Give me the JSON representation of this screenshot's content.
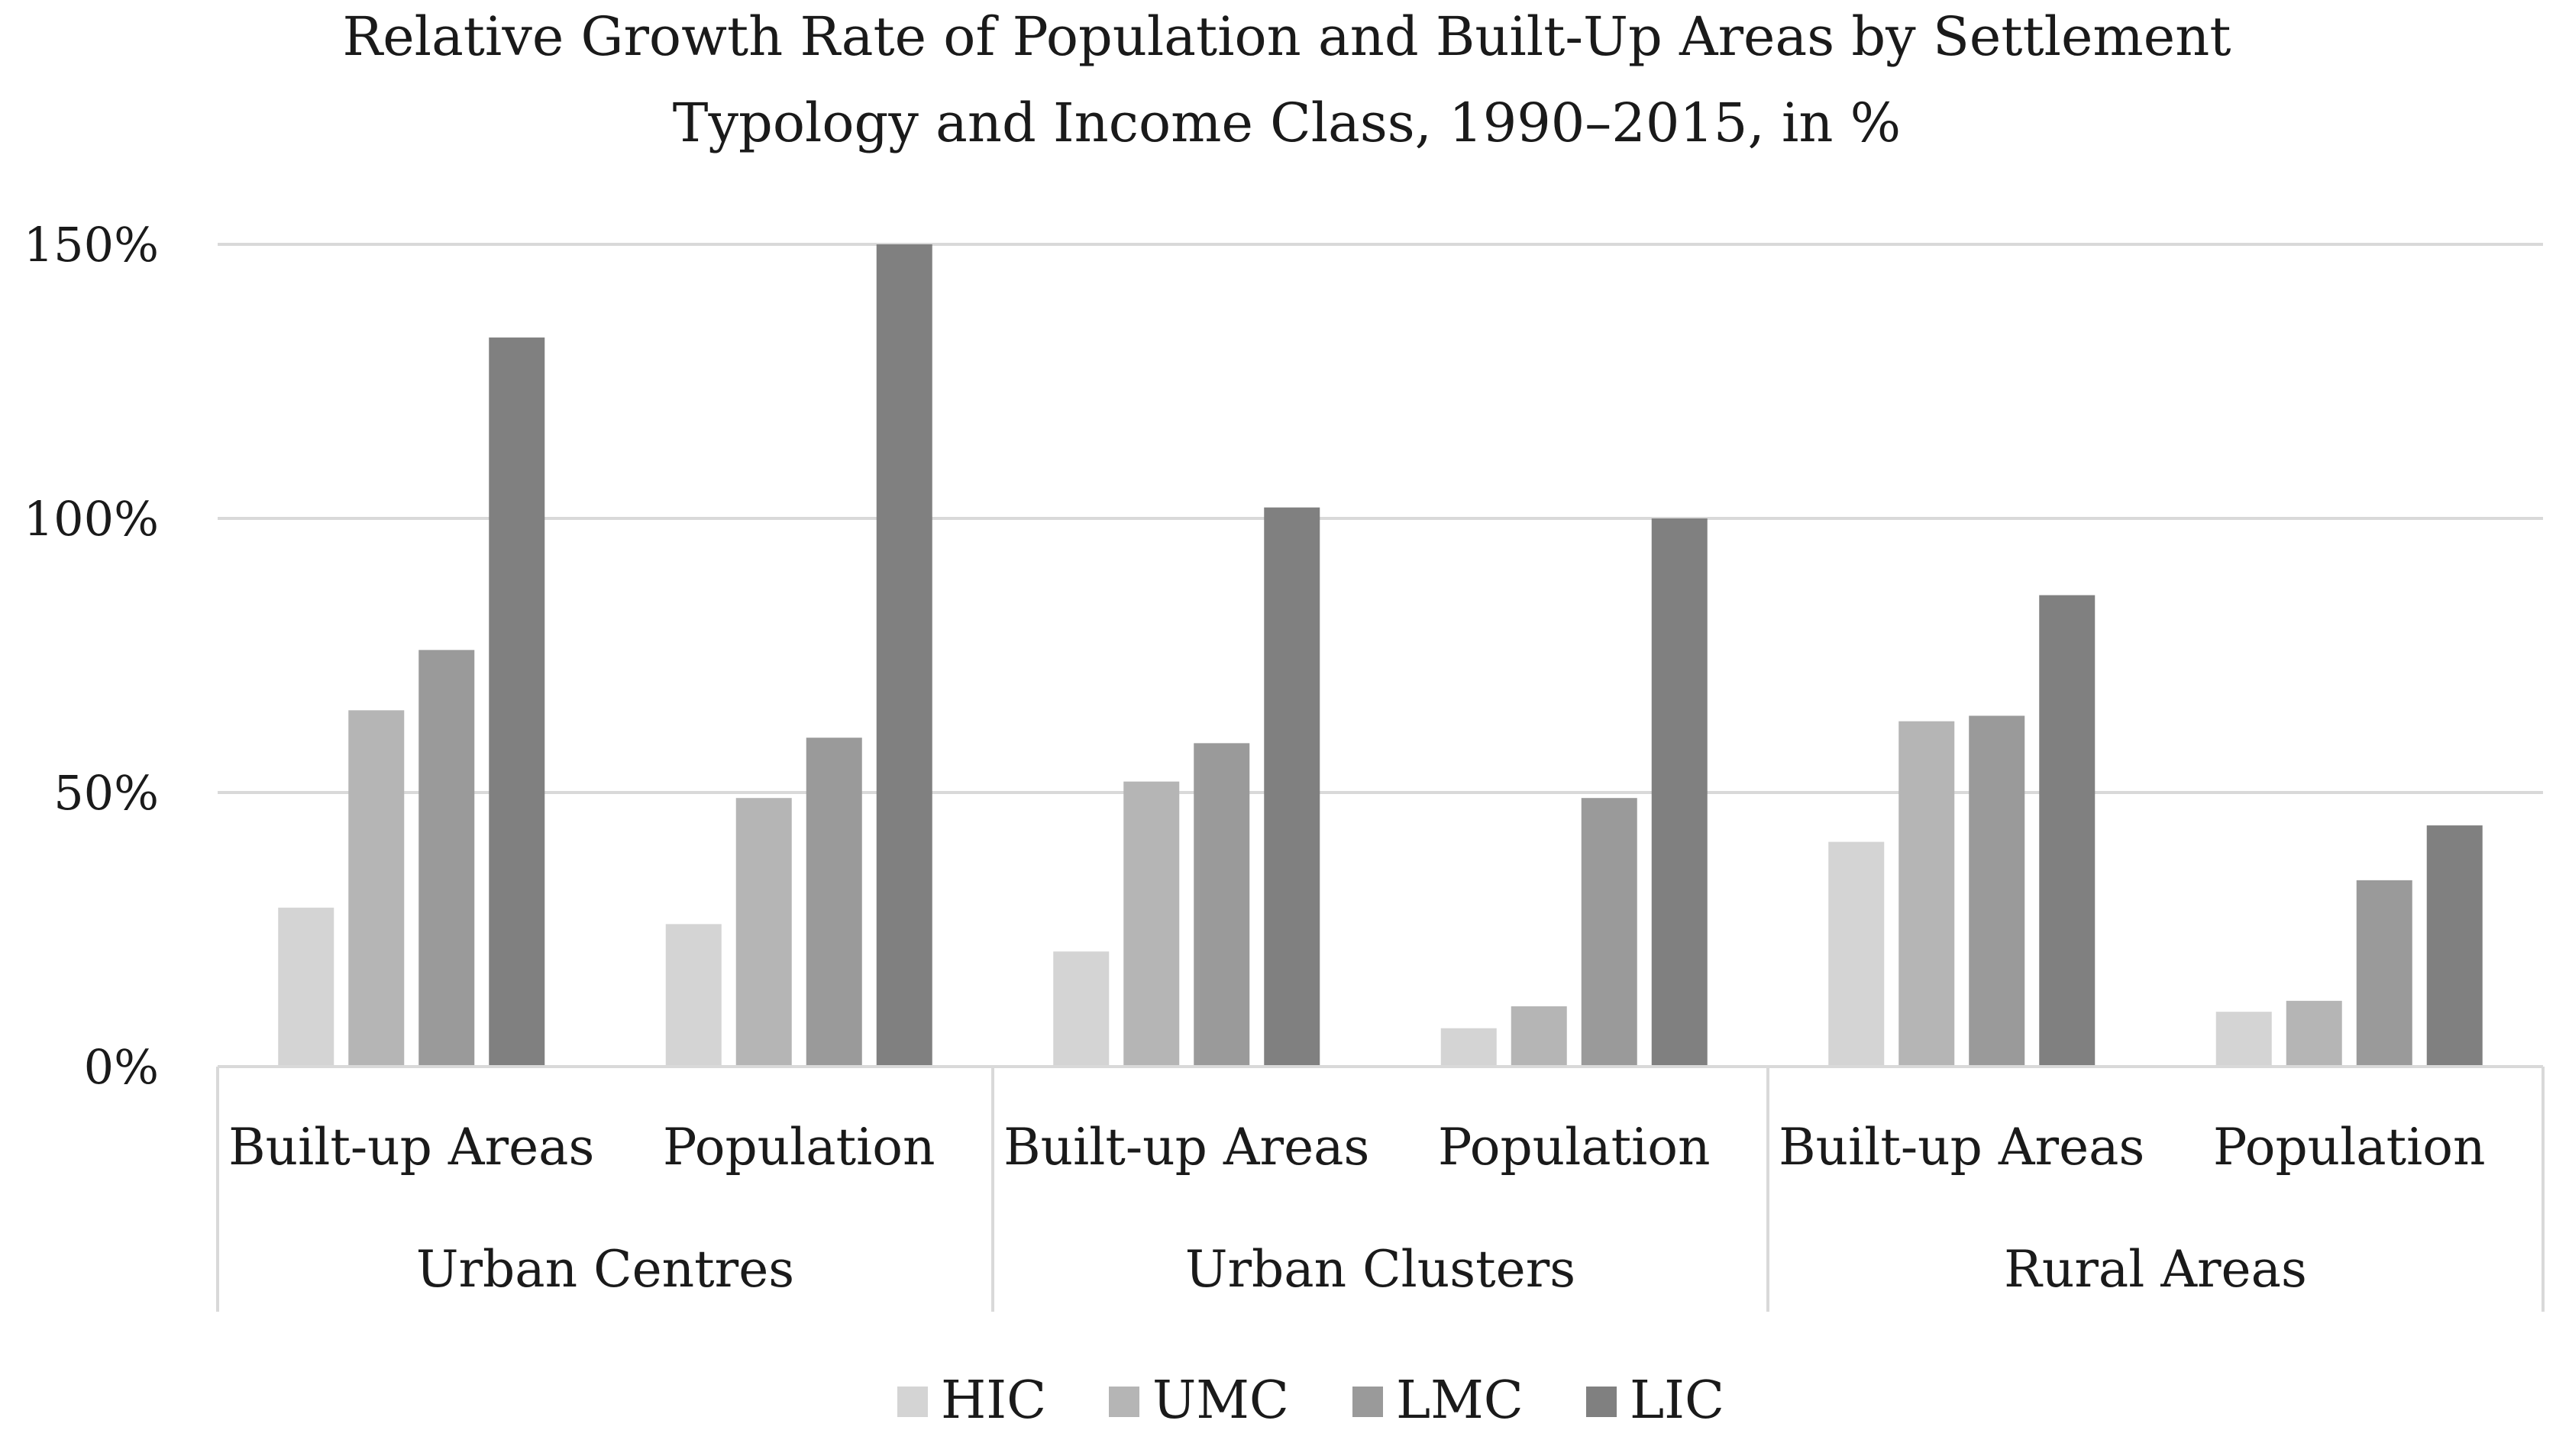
{
  "chart_data": {
    "type": "bar",
    "title_lines": [
      "Relative Growth Rate of Population and Built-Up Areas by Settlement",
      "Typology and Income Class, 1990–2015, in %"
    ],
    "categories": [
      {
        "label": "Built-up Areas",
        "group": "Urban Centres"
      },
      {
        "label": "Population",
        "group": "Urban Centres"
      },
      {
        "label": "Built-up Areas",
        "group": "Urban Clusters"
      },
      {
        "label": "Population",
        "group": "Urban Clusters"
      },
      {
        "label": "Built-up Areas",
        "group": "Rural Areas"
      },
      {
        "label": "Population",
        "group": "Rural Areas"
      }
    ],
    "groups": [
      "Urban Centres",
      "Urban Clusters",
      "Rural Areas"
    ],
    "series": [
      {
        "name": "HIC",
        "color": "#d4d4d4",
        "values": [
          29,
          26,
          21,
          7,
          41,
          10
        ]
      },
      {
        "name": "UMC",
        "color": "#b5b5b5",
        "values": [
          65,
          49,
          52,
          11,
          63,
          12
        ]
      },
      {
        "name": "LMC",
        "color": "#9a9a9a",
        "values": [
          76,
          60,
          59,
          49,
          64,
          34
        ]
      },
      {
        "name": "LIC",
        "color": "#808080",
        "values": [
          133,
          150,
          102,
          100,
          86,
          44
        ]
      }
    ],
    "yticks": [
      0,
      50,
      100,
      150
    ],
    "ytick_labels": [
      "0%",
      "50%",
      "100%",
      "150%"
    ],
    "ylim": [
      0,
      150
    ],
    "ylabel": "",
    "xlabel": "",
    "grid": true,
    "legend_position": "bottom"
  }
}
